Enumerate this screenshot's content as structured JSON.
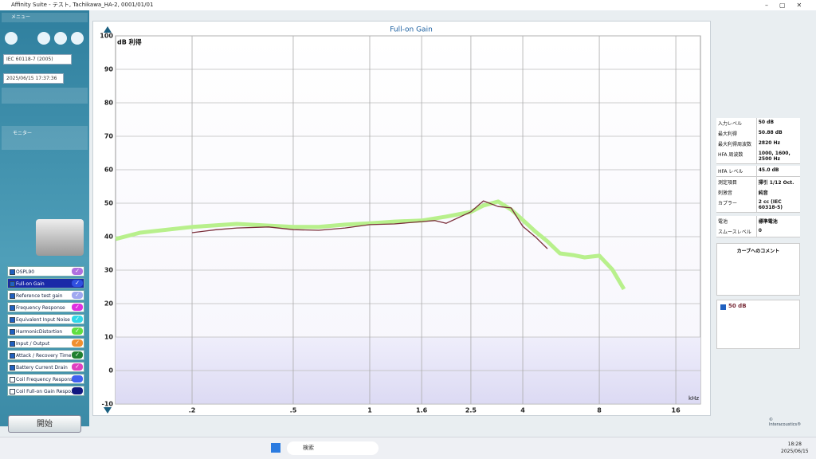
{
  "title_bar": "Affinity Suite - テスト, Tachikawa_HA-2, 0001/01/01",
  "left_panel": {
    "menu": "メニュー",
    "standard": "IEC 60118-7 (2005)",
    "datetime": "2025/06/15 17:37:36",
    "monitor": "モニター",
    "tests": [
      {
        "label": "OSPL90",
        "color": "#b070e0",
        "checked": true
      },
      {
        "label": "Full-on Gain",
        "color": "#3050e0",
        "checked": true
      },
      {
        "label": "Reference test gain",
        "color": "#a0a8f0",
        "checked": true
      },
      {
        "label": "Frequency Response",
        "color": "#e030e0",
        "checked": true
      },
      {
        "label": "Equivalent Input Noise",
        "color": "#30d8e8",
        "checked": true
      },
      {
        "label": "HarmonicDistortion",
        "color": "#60e040",
        "checked": true
      },
      {
        "label": "Input / Output",
        "color": "#f09030",
        "checked": true
      },
      {
        "label": "Attack / Recovery Time",
        "color": "#208030",
        "checked": true
      },
      {
        "label": "Battery Current Drain",
        "color": "#e040c0",
        "checked": true
      },
      {
        "label": "Coil Frequency Response",
        "color": "#4060f0",
        "checked": false
      },
      {
        "label": "Coil Full-on Gain Respo...",
        "color": "#101880",
        "checked": false
      }
    ],
    "start_button": "開始"
  },
  "chart_data": {
    "type": "line",
    "title": "Full-on Gain",
    "y_label": "dB 利得",
    "x_label": "kHz",
    "x_scale": "log",
    "xlim": [
      0.1,
      20
    ],
    "ylim": [
      -10,
      100
    ],
    "xticks": [
      {
        "value": 0.2,
        "label": ".2"
      },
      {
        "value": 0.5,
        "label": ".5"
      },
      1,
      1.6,
      2.5,
      4,
      8,
      16
    ],
    "yticks": [
      -10,
      0,
      10,
      20,
      30,
      40,
      50,
      60,
      70,
      80,
      90,
      100
    ],
    "grid": true,
    "series": [
      {
        "color": "#b8f08c",
        "x": [
          0.1,
          0.125,
          0.16,
          0.2,
          0.3,
          0.4,
          0.5,
          0.63,
          0.8,
          1,
          1.25,
          1.6,
          2,
          2.5,
          2.8,
          3.2,
          3.6,
          4,
          4.5,
          5,
          5.6,
          6.3,
          7,
          8,
          9,
          10
        ],
        "values": [
          39.3,
          41.2,
          42.1,
          42.9,
          43.8,
          43.3,
          42.9,
          42.9,
          43.6,
          44,
          44.5,
          44.8,
          46,
          47.4,
          49.3,
          50.5,
          48.1,
          45,
          41.4,
          38.6,
          35,
          34.5,
          33.8,
          34.3,
          30.2,
          24.3
        ]
      },
      {
        "name": "50 dB",
        "color": "#7a2e3a",
        "x": [
          0.2,
          0.25,
          0.3,
          0.4,
          0.5,
          0.63,
          0.8,
          1,
          1.25,
          1.6,
          1.8,
          2,
          2.5,
          2.8,
          3.2,
          3.6,
          4,
          4.5,
          5
        ],
        "values": [
          41.2,
          42.1,
          42.6,
          42.9,
          42.1,
          41.9,
          42.6,
          43.6,
          43.8,
          44.5,
          44.8,
          44,
          47.4,
          50.7,
          49,
          48.6,
          43.1,
          39.8,
          36.4
        ]
      }
    ]
  },
  "right_panel": {
    "rows": [
      [
        "入力レベル",
        "50 dB"
      ],
      [
        "最大利得",
        "50.88 dB"
      ],
      [
        "最大利得周波数",
        "2820 Hz"
      ],
      [
        "HFA 周波数",
        "1000, 1600, 2500 Hz"
      ],
      [
        "HFA レベル",
        "45.0 dB"
      ],
      [
        "測定項目",
        "掃引 1/12 Oct."
      ],
      [
        "刺激音",
        "純音"
      ],
      [
        "カプラー",
        "2 cc (IEC 60318-5)"
      ],
      [
        "電池",
        "標準電池"
      ],
      [
        "スムースレベル",
        "0"
      ]
    ],
    "comment_title": "カーブへのコメント",
    "copyright": "© Interacoustics®"
  },
  "taskbar": {
    "search": "検索",
    "time": "18:28",
    "date": "2025/06/15"
  }
}
